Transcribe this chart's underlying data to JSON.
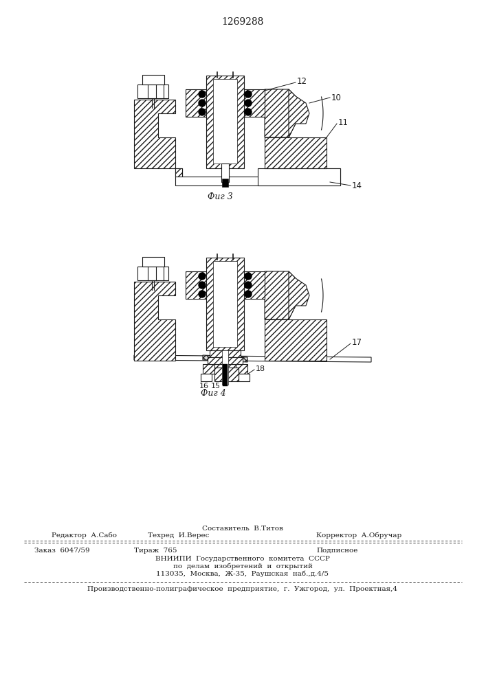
{
  "title": "1269288",
  "fig3_label": "Фиг 3",
  "fig4_label": "Фиг 4",
  "footer_staff": "Составитель  В.Титов",
  "footer_editor": "Редактор  А.Сабо",
  "footer_techred": "Техред  И.Верес",
  "footer_corrector": "Корректор  А.Обручар",
  "footer_order": "Заказ  6047/59",
  "footer_tirazh": "Тираж  765",
  "footer_podp": "Подписное",
  "footer_vniipи": "ВНИИПИ  Государственного  комитета  СССР",
  "footer_dela": "по  делам  изобретений  и  открытий",
  "footer_addr": "113035,  Москва,  Ж-35,  Раушская  наб.,д.4/5",
  "footer_poligr": "Производственно-полиграфическое  предприятие,  г.  Ужгород,  ул.  Проектная,4",
  "bg_color": "#ffffff",
  "line_color": "#1a1a1a",
  "label_10": "10",
  "label_11": "11",
  "label_12": "12",
  "label_14": "14",
  "label_15a": "16",
  "label_15b": "15",
  "label_17": "17",
  "label_18": "18"
}
